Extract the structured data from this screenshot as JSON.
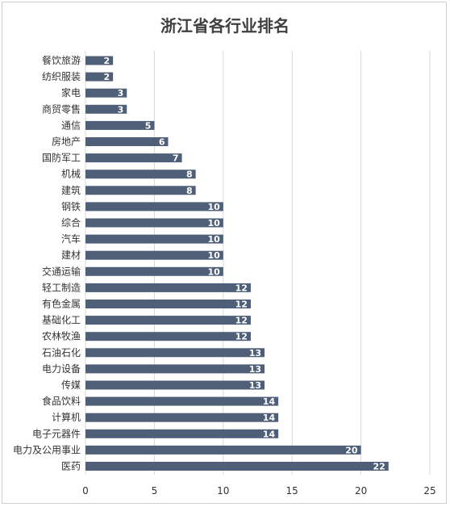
{
  "chart_data": {
    "type": "bar",
    "orientation": "horizontal",
    "title": "浙江省各行业排名",
    "categories": [
      "餐饮旅游",
      "纺织服装",
      "家电",
      "商贸零售",
      "通信",
      "房地产",
      "国防军工",
      "机械",
      "建筑",
      "钢铁",
      "综合",
      "汽车",
      "建材",
      "交通运输",
      "轻工制造",
      "有色金属",
      "基础化工",
      "农林牧渔",
      "石油石化",
      "电力设备",
      "传媒",
      "食品饮料",
      "计算机",
      "电子元器件",
      "电力及公用事业",
      "医药"
    ],
    "values": [
      2,
      2,
      3,
      3,
      5,
      6,
      7,
      8,
      8,
      10,
      10,
      10,
      10,
      10,
      12,
      12,
      12,
      12,
      13,
      13,
      13,
      14,
      14,
      14,
      20,
      22
    ],
    "xlim": [
      0,
      25
    ],
    "xticks": [
      0,
      5,
      10,
      15,
      20,
      25
    ],
    "xlabel": "",
    "ylabel": "",
    "grid": true,
    "bar_color": "#4f5f78",
    "label_color": "#ffffff",
    "legend": "none"
  }
}
